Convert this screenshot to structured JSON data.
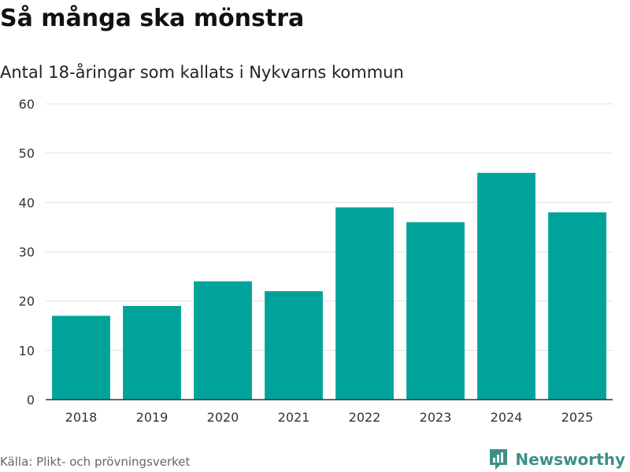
{
  "title": "Så många ska mönstra",
  "subtitle": "Antal 18-åringar som kallats i Nykvarns kommun",
  "source": "Källa: Plikt- och prövningsverket",
  "brand": {
    "name": "Newsworthy",
    "logo_icon": "bar-chart-logo-icon"
  },
  "colors": {
    "bar": "#00a39a",
    "grid": "#e0e0e0",
    "axis": "#333333",
    "brand": "#3f8f87"
  },
  "chart_data": {
    "type": "bar",
    "title": "Så många ska mönstra",
    "subtitle": "Antal 18-åringar som kallats i Nykvarns kommun",
    "xlabel": "",
    "ylabel": "",
    "categories": [
      "2018",
      "2019",
      "2020",
      "2021",
      "2022",
      "2023",
      "2024",
      "2025"
    ],
    "values": [
      17,
      19,
      24,
      22,
      39,
      36,
      46,
      38
    ],
    "ylim": [
      0,
      60
    ],
    "yticks": [
      0,
      10,
      20,
      30,
      40,
      50,
      60
    ],
    "grid": true,
    "legend": "none"
  }
}
